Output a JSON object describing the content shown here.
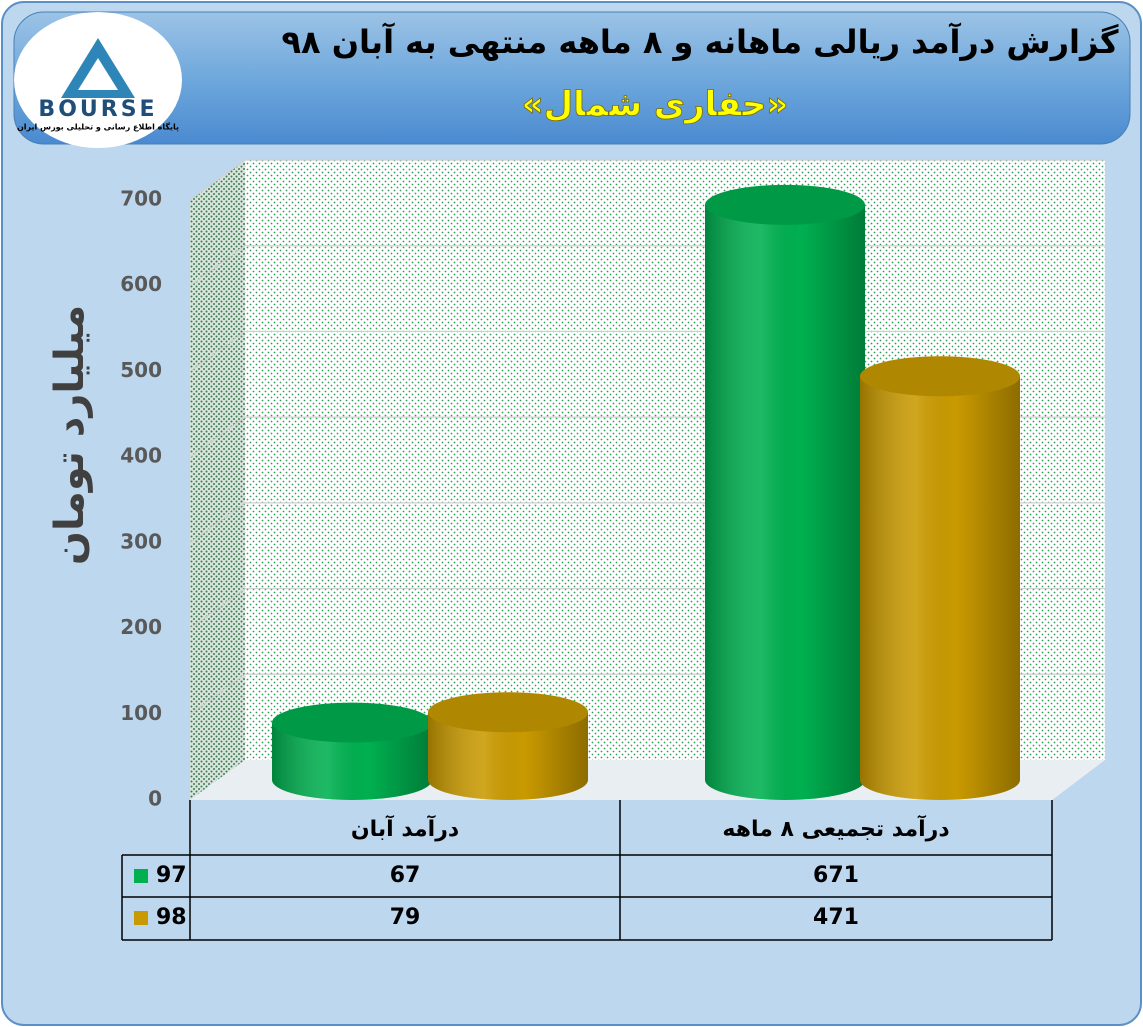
{
  "logo": {
    "text": "BOURSE",
    "caption": "پایگاه اطلاع رسانی و تحلیلی بورس ایران"
  },
  "chart_data": {
    "type": "bar",
    "title": "گزارش درآمد ریالی ماهانه و ۸ ماهه منتهی به آبان ۹۸",
    "subtitle": "«حفاری شمال»",
    "y_label": "میلیارد تومان",
    "categories": [
      "درآمد آبان",
      "درآمد تجمیعی ۸ ماهه"
    ],
    "series": [
      {
        "name": "97",
        "color": "#00b050",
        "values": [
          67,
          671
        ]
      },
      {
        "name": "98",
        "color": "#c99a00",
        "values": [
          79,
          471
        ]
      }
    ],
    "ylim": [
      0,
      700
    ],
    "yticks": [
      0,
      100,
      200,
      300,
      400,
      500,
      600,
      700
    ],
    "grid": true
  }
}
